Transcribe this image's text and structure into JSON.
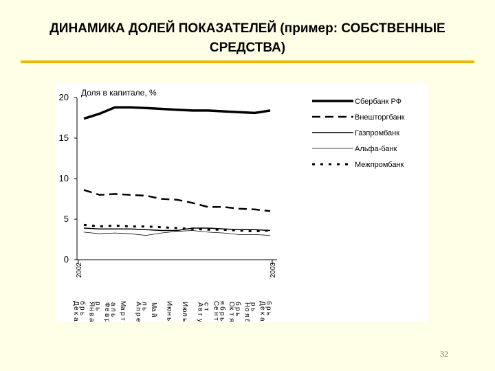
{
  "title_line1": "ДИНАМИКА ДОЛЕЙ ПОКАЗАТЕЛЕЙ (пример: СОБСТВЕННЫЕ",
  "title_line2": "СРЕДСТВА)",
  "page_number": "32",
  "accent_color": "#f5b400",
  "chart_data": {
    "type": "line",
    "title": "",
    "ylabel": "Доля в капитале, %",
    "ylim": [
      0,
      20
    ],
    "yticks": [
      0,
      5,
      10,
      15,
      20
    ],
    "years": [
      "2002",
      "2003"
    ],
    "categories": [
      "Декабрь",
      "Январь",
      "Февраль",
      "Март",
      "Апрель",
      "Май",
      "Июнь",
      "Июль",
      "Август",
      "Сентябрь",
      "Октябрь",
      "Ноябрь",
      "Декабрь"
    ],
    "category_tick_text": [
      "Д",
      "е",
      "к",
      "а",
      "б",
      "р",
      "ь",
      "Я",
      "н",
      "в",
      "а",
      "р",
      "ь",
      "Ф",
      "е",
      "в",
      "р",
      "а",
      "л",
      "ь",
      "М",
      "а",
      "р",
      "т",
      "А",
      "п",
      "р",
      "е",
      "л",
      "ь",
      "М",
      "а",
      "й",
      "И",
      "ю",
      "н",
      "ь",
      "И",
      "ю",
      "л",
      "ь",
      "А",
      "в",
      "г",
      "у",
      "с",
      "т",
      "С",
      "е",
      "н",
      "т",
      "я",
      "б",
      "р",
      "ь",
      "О",
      "к",
      "т",
      "я",
      "б",
      "р",
      "ь",
      "Н",
      "о",
      "я",
      "б",
      "р",
      "ь",
      "Д",
      "е",
      "к",
      "а",
      "б",
      "р",
      "ь"
    ],
    "legend_position": "right",
    "grid": false,
    "series": [
      {
        "name": "Сбербанк РФ",
        "style": "thick-solid",
        "color": "#000000",
        "values": [
          17.4,
          18.0,
          18.8,
          18.8,
          18.7,
          18.6,
          18.5,
          18.4,
          18.4,
          18.3,
          18.2,
          18.1,
          18.4
        ]
      },
      {
        "name": "Внешторгбанк",
        "style": "dash",
        "color": "#000000",
        "values": [
          8.6,
          8.0,
          8.1,
          8.0,
          7.9,
          7.5,
          7.4,
          7.0,
          6.5,
          6.5,
          6.3,
          6.2,
          6.0
        ]
      },
      {
        "name": "Газпромбанк",
        "style": "solid",
        "color": "#000000",
        "values": [
          3.9,
          3.8,
          3.8,
          3.8,
          3.7,
          3.6,
          3.6,
          3.9,
          3.9,
          3.8,
          3.7,
          3.7,
          3.6
        ]
      },
      {
        "name": "Альфа-банк",
        "style": "thin-solid",
        "color": "#000000",
        "values": [
          3.4,
          3.2,
          3.3,
          3.2,
          3.0,
          3.3,
          3.5,
          3.6,
          3.4,
          3.3,
          3.1,
          3.1,
          3.0
        ]
      },
      {
        "name": "Межпромбанк",
        "style": "dot",
        "color": "#000000",
        "values": [
          4.3,
          4.1,
          4.2,
          4.1,
          4.1,
          4.0,
          3.9,
          3.8,
          3.7,
          3.7,
          3.6,
          3.5,
          3.6
        ]
      }
    ]
  }
}
